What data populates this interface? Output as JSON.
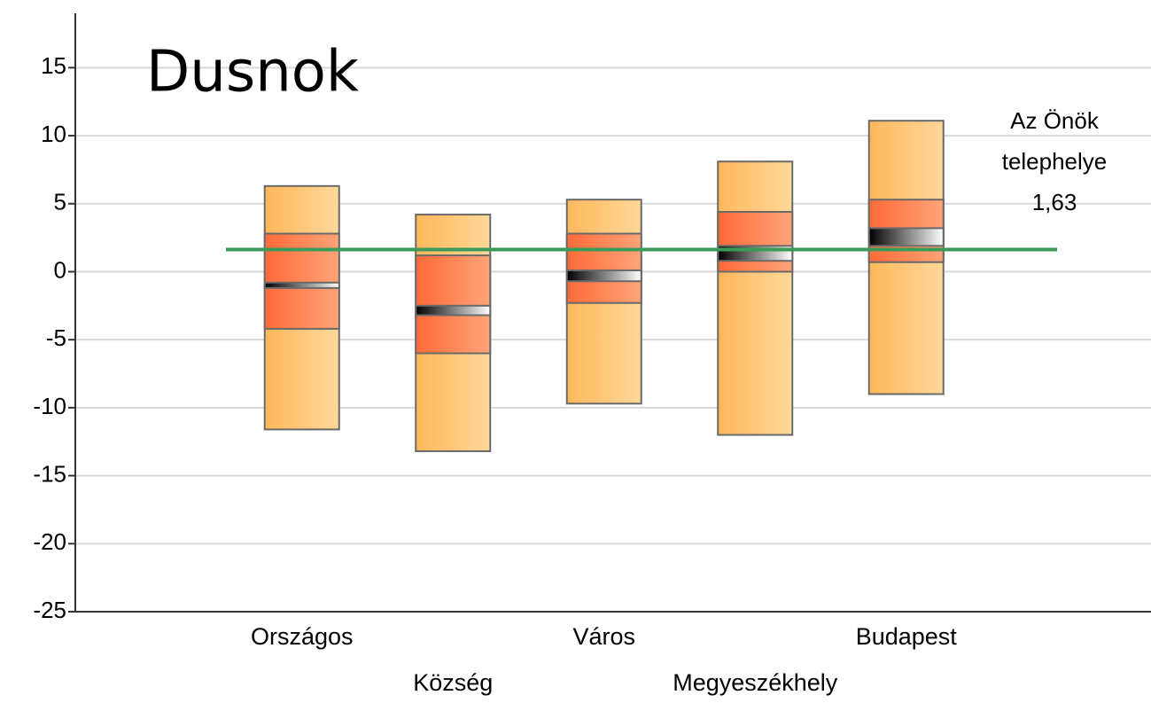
{
  "chart_data": {
    "type": "box",
    "title": "Dusnok",
    "categories": [
      "Országos",
      "Község",
      "Város",
      "Megyeszékhely",
      "Budapest"
    ],
    "boxes": [
      {
        "max": 6.3,
        "upper": 2.8,
        "band_top": -0.8,
        "band_bottom": -1.2,
        "lower": -4.2,
        "min": -11.6
      },
      {
        "max": 4.2,
        "upper": 1.2,
        "band_top": -2.5,
        "band_bottom": -3.2,
        "lower": -6.0,
        "min": -13.2
      },
      {
        "max": 5.3,
        "upper": 2.8,
        "band_top": 0.1,
        "band_bottom": -0.7,
        "lower": -2.3,
        "min": -9.7
      },
      {
        "max": 8.1,
        "upper": 4.4,
        "band_top": 1.9,
        "band_bottom": 0.8,
        "lower": 0.0,
        "min": -12.0
      },
      {
        "max": 11.1,
        "upper": 5.3,
        "band_top": 3.2,
        "band_bottom": 1.9,
        "lower": 0.7,
        "min": -9.0
      }
    ],
    "outer_colors": [
      "#ffb85a",
      "#ffd89a"
    ],
    "inner_colors": [
      "#ff6a38",
      "#ffa478"
    ],
    "band_colors": [
      "#000000",
      "#ffffff"
    ],
    "reference": {
      "value": 1.63,
      "value_label": "1,63",
      "label": [
        "Az Önök",
        "telephelye"
      ],
      "color": "#3a9a5a"
    },
    "ylim": [
      -25,
      19
    ],
    "yticks": [
      -25,
      -20,
      -15,
      -10,
      -5,
      0,
      5,
      10,
      15
    ],
    "grid": true
  }
}
